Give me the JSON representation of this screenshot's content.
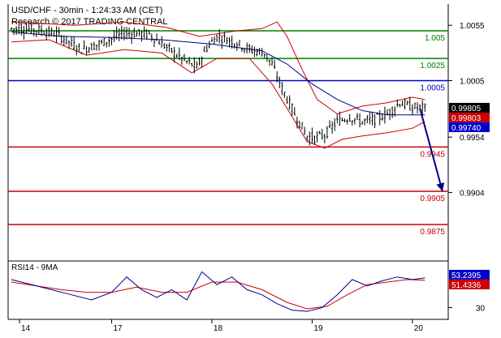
{
  "header": {
    "line1": "USD/CHF - 30min - 1:24:33 AM (CET)",
    "line2": "Research © 2017 TRADING CENTRAL"
  },
  "colors": {
    "background": "#ffffff",
    "grid": "#000000",
    "candle": "#000000",
    "bollinger": "#cc0000",
    "moving_average": "#00008b",
    "resistance": "#008000",
    "pivot": "#0000cd",
    "support": "#cc0000",
    "arrow": "#000080",
    "rsi": "#00008b",
    "rsi_ma": "#cc0000",
    "tag_black": "#000000",
    "tag_red": "#cc0000",
    "tag_blue": "#0000cc"
  },
  "chart_data": [
    {
      "type": "candlestick",
      "ylim": [
        0.9845,
        1.0072
      ],
      "y_ticks": [
        {
          "value": 1.0055,
          "label": "1.0055"
        },
        {
          "value": 1.0005,
          "label": "1.0005"
        },
        {
          "value": 0.9954,
          "label": "0.9954"
        },
        {
          "value": 0.9904,
          "label": "0.9904"
        }
      ],
      "x_ticks": [
        {
          "bar": 0,
          "label": "14"
        },
        {
          "bar": 40,
          "label": "17"
        },
        {
          "bar": 80,
          "label": "18"
        },
        {
          "bar": 120,
          "label": "19"
        },
        {
          "bar": 160,
          "label": "20"
        }
      ],
      "levels": [
        {
          "value": 1.005,
          "label": "1.005",
          "kind": "resistance"
        },
        {
          "value": 1.0025,
          "label": "1.0025",
          "kind": "resistance"
        },
        {
          "value": 1.0005,
          "label": "1.0005",
          "kind": "pivot"
        },
        {
          "value": 0.9945,
          "label": "0.9945",
          "kind": "support"
        },
        {
          "value": 0.9905,
          "label": "0.9905",
          "kind": "support"
        },
        {
          "value": 0.9875,
          "label": "0.9875",
          "kind": "support"
        }
      ],
      "price_tags": [
        {
          "value": 0.99805,
          "label": "0.99805",
          "style": "black"
        },
        {
          "value": 0.99803,
          "label": "0.99803",
          "style": "red"
        },
        {
          "value": 0.9974,
          "label": "0.99740",
          "style": "blue"
        }
      ],
      "forecast_arrow": {
        "from": {
          "bar": 163,
          "value": 0.998
        },
        "to": {
          "bar": 172,
          "value": 0.9905
        }
      },
      "price_path": [
        {
          "bar": 0,
          "value": 1.0052
        },
        {
          "bar": 10,
          "value": 1.0051
        },
        {
          "bar": 18,
          "value": 1.0047
        },
        {
          "bar": 28,
          "value": 1.0033
        },
        {
          "bar": 35,
          "value": 1.0038
        },
        {
          "bar": 45,
          "value": 1.0048
        },
        {
          "bar": 55,
          "value": 1.0047
        },
        {
          "bar": 62,
          "value": 1.0035
        },
        {
          "bar": 70,
          "value": 1.0022
        },
        {
          "bar": 74,
          "value": 1.0017
        },
        {
          "bar": 78,
          "value": 1.0035
        },
        {
          "bar": 82,
          "value": 1.0045
        },
        {
          "bar": 88,
          "value": 1.0041
        },
        {
          "bar": 95,
          "value": 1.0033
        },
        {
          "bar": 101,
          "value": 1.003
        },
        {
          "bar": 104,
          "value": 1.002
        },
        {
          "bar": 108,
          "value": 0.9998
        },
        {
          "bar": 113,
          "value": 0.9975
        },
        {
          "bar": 118,
          "value": 0.9955
        },
        {
          "bar": 121,
          "value": 0.9953
        },
        {
          "bar": 125,
          "value": 0.9956
        },
        {
          "bar": 130,
          "value": 0.9968
        },
        {
          "bar": 135,
          "value": 0.9972
        },
        {
          "bar": 140,
          "value": 0.9968
        },
        {
          "bar": 145,
          "value": 0.997
        },
        {
          "bar": 150,
          "value": 0.9975
        },
        {
          "bar": 155,
          "value": 0.9985
        },
        {
          "bar": 160,
          "value": 0.9981
        },
        {
          "bar": 165,
          "value": 0.998
        }
      ],
      "moving_average_path": [
        {
          "bar": 0,
          "value": 1.0049
        },
        {
          "bar": 20,
          "value": 1.0045
        },
        {
          "bar": 40,
          "value": 1.0044
        },
        {
          "bar": 60,
          "value": 1.0042
        },
        {
          "bar": 80,
          "value": 1.0038
        },
        {
          "bar": 100,
          "value": 1.0032
        },
        {
          "bar": 110,
          "value": 1.002
        },
        {
          "bar": 120,
          "value": 1.0002
        },
        {
          "bar": 130,
          "value": 0.9988
        },
        {
          "bar": 140,
          "value": 0.9978
        },
        {
          "bar": 150,
          "value": 0.9974
        },
        {
          "bar": 165,
          "value": 0.9974
        }
      ],
      "bollinger_upper_path": [
        {
          "bar": 0,
          "value": 1.0058
        },
        {
          "bar": 10,
          "value": 1.0057
        },
        {
          "bar": 25,
          "value": 1.0055
        },
        {
          "bar": 45,
          "value": 1.0058
        },
        {
          "bar": 62,
          "value": 1.0053
        },
        {
          "bar": 75,
          "value": 1.0045
        },
        {
          "bar": 90,
          "value": 1.005
        },
        {
          "bar": 100,
          "value": 1.0052
        },
        {
          "bar": 106,
          "value": 1.0058
        },
        {
          "bar": 110,
          "value": 1.0045
        },
        {
          "bar": 116,
          "value": 1.0015
        },
        {
          "bar": 122,
          "value": 0.9988
        },
        {
          "bar": 130,
          "value": 0.9975
        },
        {
          "bar": 140,
          "value": 0.9982
        },
        {
          "bar": 150,
          "value": 0.9985
        },
        {
          "bar": 160,
          "value": 0.999
        },
        {
          "bar": 165,
          "value": 0.9988
        }
      ],
      "bollinger_lower_path": [
        {
          "bar": 0,
          "value": 1.004
        },
        {
          "bar": 15,
          "value": 1.0042
        },
        {
          "bar": 30,
          "value": 1.0028
        },
        {
          "bar": 45,
          "value": 1.0033
        },
        {
          "bar": 60,
          "value": 1.003
        },
        {
          "bar": 72,
          "value": 1.0012
        },
        {
          "bar": 82,
          "value": 1.0025
        },
        {
          "bar": 95,
          "value": 1.0025
        },
        {
          "bar": 104,
          "value": 1.0002
        },
        {
          "bar": 110,
          "value": 0.998
        },
        {
          "bar": 118,
          "value": 0.995
        },
        {
          "bar": 125,
          "value": 0.9944
        },
        {
          "bar": 132,
          "value": 0.9952
        },
        {
          "bar": 140,
          "value": 0.9955
        },
        {
          "bar": 150,
          "value": 0.9958
        },
        {
          "bar": 160,
          "value": 0.9962
        },
        {
          "bar": 165,
          "value": 0.9968
        }
      ]
    },
    {
      "type": "line",
      "title": "RSI14 - 9MA",
      "ylim": [
        22,
        64
      ],
      "y_ticks": [
        {
          "value": 30,
          "label": "30"
        }
      ],
      "series": [
        {
          "name": "RSI14",
          "path": [
            {
              "bar": 0,
              "value": 52
            },
            {
              "bar": 8,
              "value": 48
            },
            {
              "bar": 16,
              "value": 44
            },
            {
              "bar": 24,
              "value": 40
            },
            {
              "bar": 32,
              "value": 36
            },
            {
              "bar": 40,
              "value": 42
            },
            {
              "bar": 46,
              "value": 54
            },
            {
              "bar": 52,
              "value": 44
            },
            {
              "bar": 58,
              "value": 38
            },
            {
              "bar": 64,
              "value": 44
            },
            {
              "bar": 70,
              "value": 36
            },
            {
              "bar": 76,
              "value": 58
            },
            {
              "bar": 82,
              "value": 48
            },
            {
              "bar": 88,
              "value": 54
            },
            {
              "bar": 94,
              "value": 44
            },
            {
              "bar": 100,
              "value": 40
            },
            {
              "bar": 106,
              "value": 33
            },
            {
              "bar": 112,
              "value": 28
            },
            {
              "bar": 118,
              "value": 27
            },
            {
              "bar": 124,
              "value": 30
            },
            {
              "bar": 130,
              "value": 40
            },
            {
              "bar": 136,
              "value": 52
            },
            {
              "bar": 142,
              "value": 47
            },
            {
              "bar": 148,
              "value": 51
            },
            {
              "bar": 154,
              "value": 54
            },
            {
              "bar": 160,
              "value": 52
            },
            {
              "bar": 165,
              "value": 53.2395
            }
          ]
        },
        {
          "name": "9MA",
          "path": [
            {
              "bar": 0,
              "value": 50
            },
            {
              "bar": 10,
              "value": 47
            },
            {
              "bar": 20,
              "value": 44
            },
            {
              "bar": 30,
              "value": 42
            },
            {
              "bar": 40,
              "value": 42
            },
            {
              "bar": 50,
              "value": 46
            },
            {
              "bar": 60,
              "value": 42
            },
            {
              "bar": 70,
              "value": 42
            },
            {
              "bar": 80,
              "value": 50
            },
            {
              "bar": 90,
              "value": 50
            },
            {
              "bar": 100,
              "value": 44
            },
            {
              "bar": 110,
              "value": 34
            },
            {
              "bar": 118,
              "value": 29
            },
            {
              "bar": 126,
              "value": 31
            },
            {
              "bar": 134,
              "value": 40
            },
            {
              "bar": 142,
              "value": 48
            },
            {
              "bar": 150,
              "value": 50
            },
            {
              "bar": 158,
              "value": 52
            },
            {
              "bar": 165,
              "value": 51.4336
            }
          ]
        }
      ],
      "value_tags": [
        {
          "value": 53.2395,
          "label": "53.2395",
          "style": "blue"
        },
        {
          "value": 51.4336,
          "label": "51.4336",
          "style": "red"
        }
      ]
    }
  ]
}
